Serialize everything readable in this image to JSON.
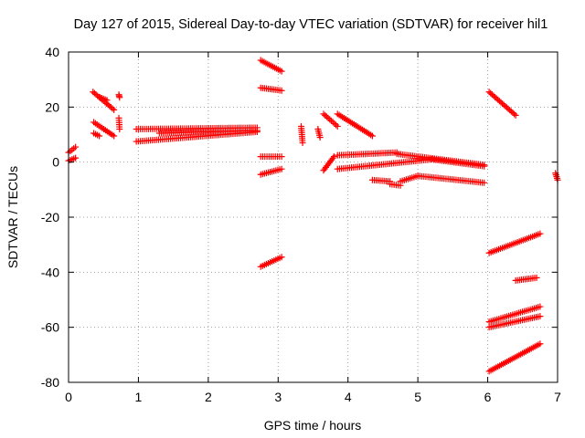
{
  "chart_data": {
    "type": "scatter",
    "title": "Day 127 of 2015, Sidereal Day-to-day VTEC variation (SDTVAR) for receiver hil1",
    "xlabel": "GPS time / hours",
    "ylabel": "SDTVAR / TECUs",
    "xlim": [
      0,
      7
    ],
    "ylim": [
      -80,
      40
    ],
    "xticks": [
      "0",
      "1",
      "2",
      "3",
      "4",
      "5",
      "6",
      "7"
    ],
    "yticks": [
      "-80",
      "-60",
      "-40",
      "-20",
      "0",
      "20",
      "40"
    ],
    "grid": true,
    "marker": "plus",
    "color": "#ff0000",
    "segments": [
      {
        "x0": 0.0,
        "x1": 0.1,
        "y0": 0.5,
        "y1": 1.5
      },
      {
        "x0": 0.0,
        "x1": 0.1,
        "y0": 3.5,
        "y1": 5.5
      },
      {
        "x0": 0.35,
        "x1": 0.65,
        "y0": 25.5,
        "y1": 19.0
      },
      {
        "x0": 0.45,
        "x1": 0.55,
        "y0": 23.5,
        "y1": 22.5
      },
      {
        "x0": 0.36,
        "x1": 0.65,
        "y0": 14.5,
        "y1": 9.5
      },
      {
        "x0": 0.36,
        "x1": 0.44,
        "y0": 10.5,
        "y1": 9.5
      },
      {
        "x0": 0.72,
        "x1": 0.73,
        "y0": 24.5,
        "y1": 23.5
      },
      {
        "x0": 0.72,
        "x1": 0.73,
        "y0": 16.0,
        "y1": 12.0
      },
      {
        "x0": 0.97,
        "x1": 2.7,
        "y0": 12.0,
        "y1": 12.5
      },
      {
        "x0": 0.97,
        "x1": 2.7,
        "y0": 7.5,
        "y1": 11.0
      },
      {
        "x0": 1.3,
        "x1": 2.7,
        "y0": 10.5,
        "y1": 11.5
      },
      {
        "x0": 2.75,
        "x1": 3.05,
        "y0": 37.0,
        "y1": 33.0
      },
      {
        "x0": 2.75,
        "x1": 3.05,
        "y0": 27.0,
        "y1": 26.0
      },
      {
        "x0": 2.75,
        "x1": 3.05,
        "y0": 2.0,
        "y1": 2.0
      },
      {
        "x0": 2.75,
        "x1": 3.05,
        "y0": -4.5,
        "y1": -2.5
      },
      {
        "x0": 2.75,
        "x1": 3.05,
        "y0": -38.0,
        "y1": -34.5
      },
      {
        "x0": 3.33,
        "x1": 3.35,
        "y0": 13.0,
        "y1": 7.0
      },
      {
        "x0": 3.57,
        "x1": 3.6,
        "y0": 12.0,
        "y1": 9.0
      },
      {
        "x0": 3.65,
        "x1": 3.85,
        "y0": 17.5,
        "y1": 13.0
      },
      {
        "x0": 3.65,
        "x1": 3.8,
        "y0": -3.0,
        "y1": 2.0
      },
      {
        "x0": 3.85,
        "x1": 4.35,
        "y0": 17.5,
        "y1": 9.5
      },
      {
        "x0": 3.85,
        "x1": 4.7,
        "y0": 2.5,
        "y1": 3.5
      },
      {
        "x0": 3.85,
        "x1": 5.2,
        "y0": -2.5,
        "y1": 1.0
      },
      {
        "x0": 4.35,
        "x1": 4.6,
        "y0": -6.5,
        "y1": -7.0
      },
      {
        "x0": 4.6,
        "x1": 4.75,
        "y0": -8.0,
        "y1": -8.5
      },
      {
        "x0": 4.75,
        "x1": 5.0,
        "y0": -7.0,
        "y1": -5.0
      },
      {
        "x0": 5.0,
        "x1": 5.95,
        "y0": -5.0,
        "y1": -7.5
      },
      {
        "x0": 4.7,
        "x1": 5.95,
        "y0": 3.0,
        "y1": -1.0
      },
      {
        "x0": 5.2,
        "x1": 5.95,
        "y0": 1.0,
        "y1": -1.5
      },
      {
        "x0": 6.02,
        "x1": 6.4,
        "y0": 25.5,
        "y1": 17.0
      },
      {
        "x0": 6.02,
        "x1": 6.75,
        "y0": -33.0,
        "y1": -26.0
      },
      {
        "x0": 6.4,
        "x1": 6.7,
        "y0": -43.0,
        "y1": -42.0
      },
      {
        "x0": 6.02,
        "x1": 6.75,
        "y0": -58.0,
        "y1": -52.5
      },
      {
        "x0": 6.02,
        "x1": 6.75,
        "y0": -60.0,
        "y1": -56.0
      },
      {
        "x0": 6.02,
        "x1": 6.75,
        "y0": -76.0,
        "y1": -66.0
      },
      {
        "x0": 6.97,
        "x1": 7.0,
        "y0": -4.0,
        "y1": -6.5
      }
    ]
  }
}
